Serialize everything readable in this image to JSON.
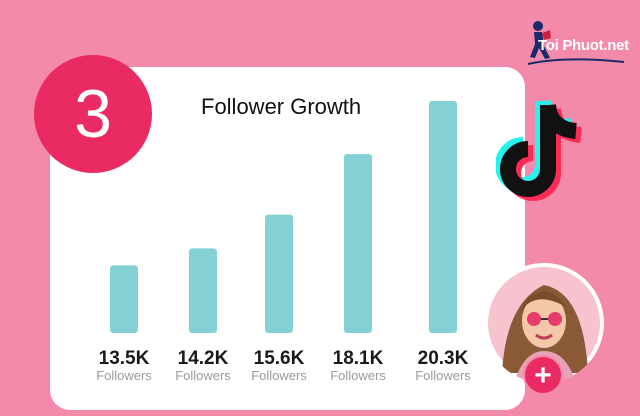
{
  "badge": {
    "number": "3"
  },
  "brand": {
    "logo_text": "Toi Phuot.net"
  },
  "colors": {
    "background": "#f48aaa",
    "bar": "#84d1d5",
    "accent": "#ea2a62"
  },
  "icons": {
    "brand": "tiktok-icon",
    "action": "plus-icon",
    "logo": "hiker-icon"
  },
  "chart_data": {
    "type": "bar",
    "title": "Follower Growth",
    "categories": [
      "",
      "",
      "",
      "",
      ""
    ],
    "values": [
      13.5,
      14.2,
      15.6,
      18.1,
      20.3
    ],
    "value_labels": [
      "13.5K",
      "14.2K",
      "15.6K",
      "18.1K",
      "20.3K"
    ],
    "unit_label": "Followers",
    "ylim": [
      10.7,
      20.3
    ],
    "grid": false,
    "legend": "none"
  }
}
